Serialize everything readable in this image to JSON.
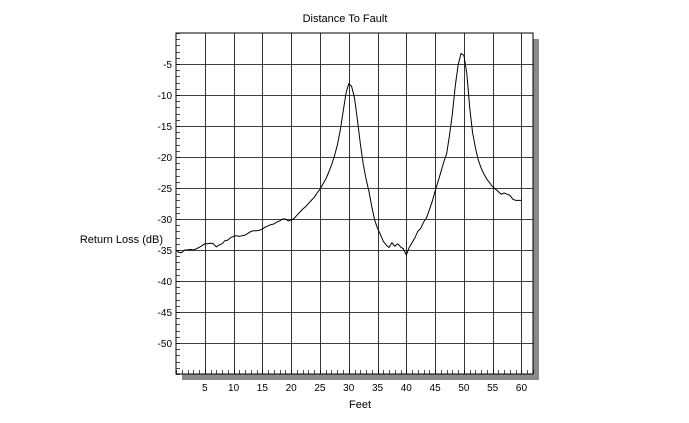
{
  "chart_data": {
    "type": "line",
    "title": "Distance To Fault",
    "xlabel": "Feet",
    "ylabel": "Return Loss (dB)",
    "xlim": [
      0,
      62
    ],
    "ylim": [
      -55,
      0
    ],
    "x_ticks": [
      5,
      10,
      15,
      20,
      25,
      30,
      35,
      40,
      45,
      50,
      55,
      60
    ],
    "y_ticks": [
      -5,
      -10,
      -15,
      -20,
      -25,
      -30,
      -35,
      -40,
      -45,
      -50
    ],
    "grid": true,
    "series": [
      {
        "name": "",
        "x": [
          0.0,
          0.5,
          1.0,
          1.5,
          2.0,
          2.5,
          3.0,
          3.5,
          4.0,
          4.5,
          5.0,
          5.5,
          6.0,
          6.5,
          7.0,
          7.5,
          8.0,
          8.5,
          9.0,
          9.5,
          10.0,
          10.5,
          11.0,
          11.5,
          12.0,
          12.5,
          13.0,
          13.5,
          14.0,
          14.5,
          15.0,
          15.5,
          16.0,
          16.5,
          17.0,
          17.5,
          18.0,
          18.5,
          19.0,
          19.5,
          20.0,
          20.5,
          21.0,
          21.5,
          22.0,
          22.5,
          23.0,
          23.5,
          24.0,
          24.5,
          25.0,
          25.5,
          26.0,
          26.5,
          27.0,
          27.5,
          28.0,
          28.5,
          29.0,
          29.5,
          30.0,
          30.5,
          31.0,
          31.5,
          32.0,
          32.5,
          33.0,
          33.5,
          34.0,
          34.5,
          35.0,
          35.5,
          36.0,
          36.5,
          37.0,
          37.5,
          38.0,
          38.5,
          39.0,
          39.5,
          40.0,
          40.5,
          41.0,
          41.5,
          42.0,
          42.5,
          43.0,
          43.5,
          44.0,
          44.5,
          45.0,
          45.5,
          46.0,
          46.5,
          47.0,
          47.5,
          48.0,
          48.5,
          49.0,
          49.5,
          50.0,
          50.5,
          51.0,
          51.5,
          52.0,
          52.5,
          53.0,
          53.5,
          54.0,
          54.5,
          55.0,
          55.5,
          56.0,
          56.5,
          57.0,
          57.5,
          58.0,
          58.5,
          59.0,
          59.5,
          60.0
        ],
        "y": [
          -35.0,
          -35.4,
          -35.4,
          -35.0,
          -35.0,
          -34.9,
          -35.0,
          -34.8,
          -34.6,
          -34.3,
          -34.0,
          -34.0,
          -33.9,
          -34.0,
          -34.5,
          -34.2,
          -34.0,
          -33.5,
          -33.4,
          -33.0,
          -32.8,
          -32.7,
          -32.8,
          -32.7,
          -32.6,
          -32.3,
          -32.0,
          -31.9,
          -31.9,
          -31.8,
          -31.6,
          -31.3,
          -31.1,
          -30.9,
          -30.8,
          -30.5,
          -30.3,
          -30.0,
          -30.0,
          -30.3,
          -30.2,
          -29.9,
          -29.4,
          -28.9,
          -28.4,
          -28.0,
          -27.5,
          -27.0,
          -26.5,
          -25.8,
          -25.2,
          -24.4,
          -23.6,
          -22.5,
          -21.3,
          -19.9,
          -18.2,
          -15.8,
          -12.8,
          -9.8,
          -8.2,
          -8.6,
          -10.5,
          -14.0,
          -17.8,
          -21.0,
          -23.5,
          -25.5,
          -28.0,
          -30.2,
          -31.5,
          -32.5,
          -33.6,
          -34.2,
          -34.6,
          -33.8,
          -34.4,
          -34.0,
          -34.5,
          -34.8,
          -35.8,
          -34.6,
          -33.8,
          -33.0,
          -32.0,
          -31.5,
          -30.5,
          -29.8,
          -28.5,
          -27.2,
          -25.5,
          -24.0,
          -22.4,
          -20.8,
          -19.5,
          -16.5,
          -13.0,
          -8.5,
          -5.2,
          -3.3,
          -3.6,
          -6.5,
          -12.0,
          -16.0,
          -18.5,
          -20.5,
          -21.8,
          -22.8,
          -23.6,
          -24.2,
          -24.8,
          -25.2,
          -25.6,
          -26.0,
          -25.8,
          -26.0,
          -26.2,
          -26.8,
          -27.0,
          -27.0,
          -27.0
        ]
      }
    ]
  }
}
